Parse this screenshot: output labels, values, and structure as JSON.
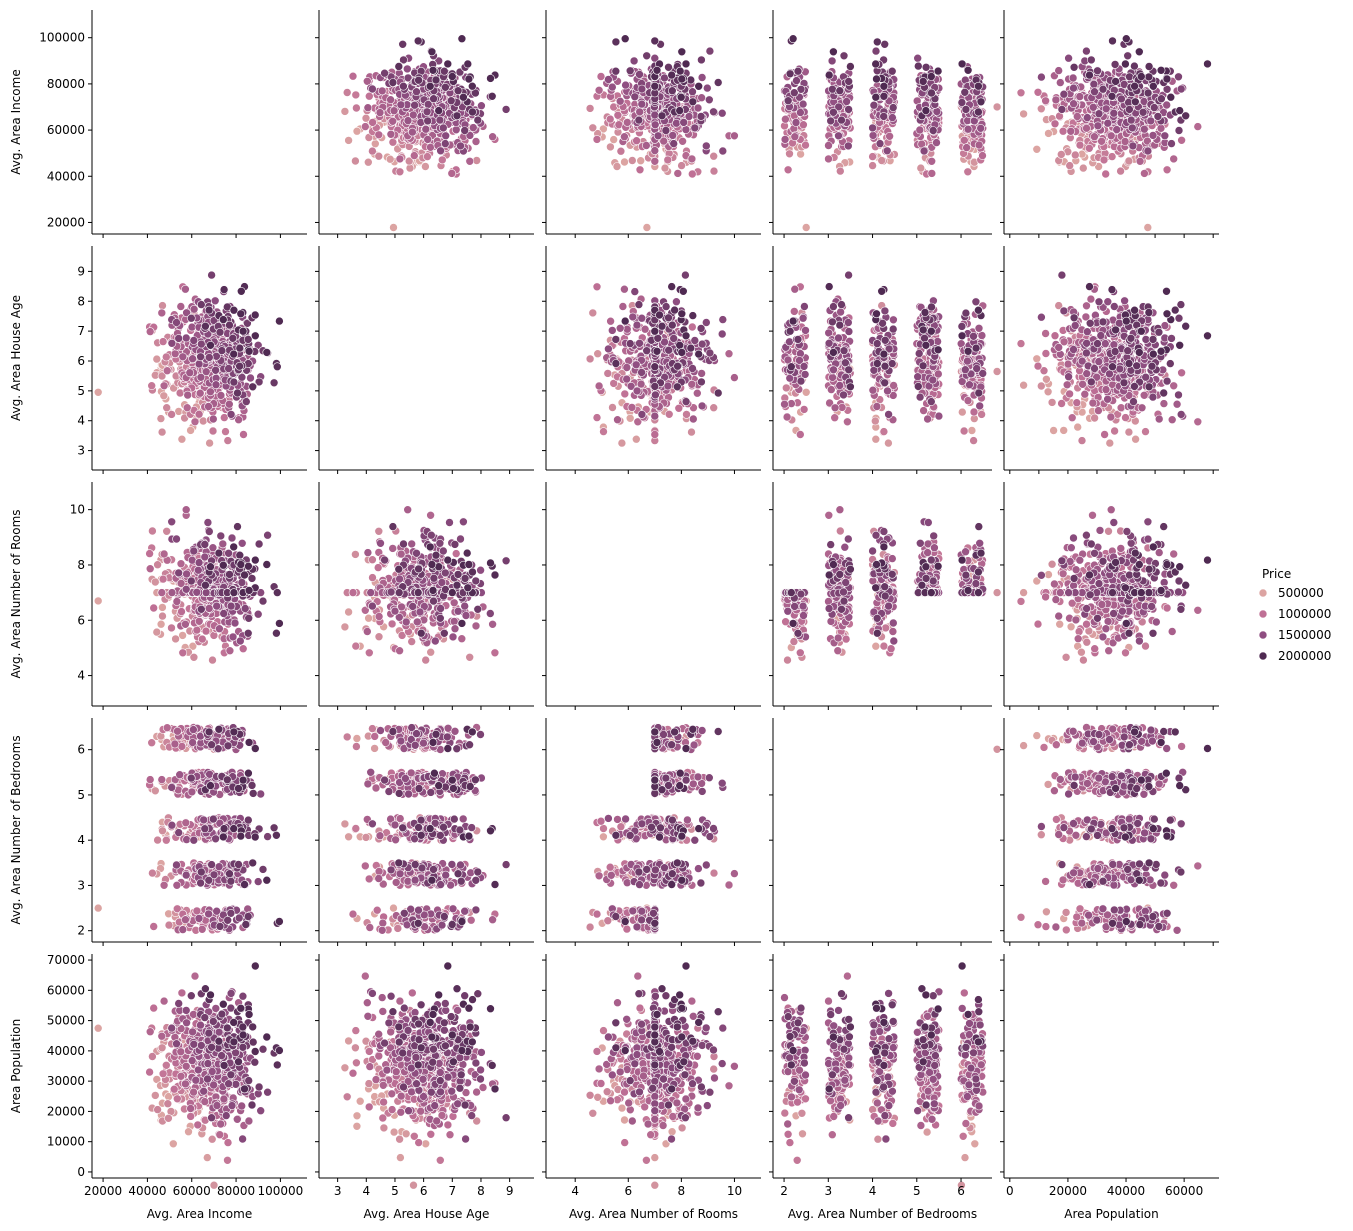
{
  "chart_data": {
    "type": "scatter",
    "kind": "pairplot",
    "hue": {
      "title": "Price",
      "entries": [
        {
          "label": "500000",
          "value": 500000,
          "color": "#dca4a2"
        },
        {
          "label": "1000000",
          "value": 1000000,
          "color": "#bf7095"
        },
        {
          "label": "1500000",
          "value": 1500000,
          "color": "#8f4e81"
        },
        {
          "label": "2000000",
          "value": 2000000,
          "color": "#4f2a52"
        }
      ],
      "range": [
        15000,
        2470000
      ]
    },
    "variables": [
      {
        "name": "Avg. Area Income",
        "range": [
          15000,
          112000
        ],
        "ticks": [
          20000,
          40000,
          60000,
          80000,
          100000
        ],
        "tick_labels": [
          "20000",
          "40000",
          "60000",
          "80000",
          "100000"
        ],
        "center": 68000,
        "spread": 10500
      },
      {
        "name": "Avg. Area House Age",
        "range": [
          2.35,
          9.85
        ],
        "ticks": [
          3,
          4,
          5,
          6,
          7,
          8,
          9
        ],
        "tick_labels": [
          "3",
          "4",
          "5",
          "6",
          "7",
          "8",
          "9"
        ],
        "center": 6.0,
        "spread": 1.0
      },
      {
        "name": "Avg. Area Number of Rooms",
        "range": [
          2.9,
          11.0
        ],
        "ticks": [
          4,
          6,
          8,
          10
        ],
        "tick_labels": [
          "4",
          "6",
          "8",
          "10"
        ],
        "center": 7.0,
        "spread": 1.0
      },
      {
        "name": "Avg. Area Number of Bedrooms",
        "range": [
          1.75,
          6.7
        ],
        "ticks": [
          2,
          3,
          4,
          5,
          6
        ],
        "tick_labels": [
          "2",
          "3",
          "4",
          "5",
          "6"
        ],
        "center": 4.0,
        "spread": 1.2
      },
      {
        "name": "Area Population",
        "range": [
          -2000,
          72000
        ],
        "ticks": [
          0,
          10000,
          20000,
          30000,
          40000,
          50000,
          60000,
          70000
        ],
        "tick_labels": [
          "0",
          "10000",
          "20000",
          "30000",
          "40000",
          "50000",
          "60000",
          "70000"
        ],
        "center": 36000,
        "spread": 10000
      }
    ],
    "bottom_ticks": {
      "Area Population": {
        "ticks": [
          0,
          20000,
          40000,
          60000
        ],
        "tick_labels": [
          "0",
          "20000",
          "40000",
          "60000"
        ]
      }
    },
    "left_ticks": {
      "Avg. Area Income": {
        "ticks": [
          20000,
          40000,
          60000,
          80000,
          100000
        ],
        "tick_labels": [
          "20000",
          "40000",
          "60000",
          "80000",
          "100000"
        ]
      },
      "Avg. Area House Age": {
        "ticks": [
          3,
          4,
          5,
          6,
          7,
          8,
          9
        ],
        "tick_labels": [
          "3",
          "4",
          "5",
          "6",
          "7",
          "8",
          "9"
        ]
      },
      "Avg. Area Number of Rooms": {
        "ticks": [
          4,
          6,
          8,
          10
        ],
        "tick_labels": [
          "4",
          "6",
          "8",
          "10"
        ]
      },
      "Avg. Area Number of Bedrooms": {
        "ticks": [
          2,
          3,
          4,
          5,
          6
        ],
        "tick_labels": [
          "2",
          "3",
          "4",
          "5",
          "6"
        ]
      },
      "Area Population": {
        "ticks": [
          0,
          10000,
          20000,
          30000,
          40000,
          50000,
          60000,
          70000
        ],
        "tick_labels": [
          "0",
          "10000",
          "20000",
          "30000",
          "40000",
          "50000",
          "60000",
          "70000"
        ]
      }
    },
    "diagonal": "empty",
    "bedroom_bands": [
      {
        "center": 2.25,
        "halfwidth": 0.25
      },
      {
        "center": 3.25,
        "halfwidth": 0.25
      },
      {
        "center": 4.25,
        "halfwidth": 0.25
      },
      {
        "center": 5.25,
        "halfwidth": 0.25
      },
      {
        "center": 6.25,
        "halfwidth": 0.25
      }
    ],
    "rooms_by_bedroom_band": [
      {
        "min": 4.0,
        "max": 7.0
      },
      {
        "min": 4.0,
        "max": 10.2
      },
      {
        "min": 4.0,
        "max": 9.7
      },
      {
        "min": 7.0,
        "max": 10.4
      },
      {
        "min": 7.0,
        "max": 10.4
      }
    ],
    "outliers": {
      "Avg. Area Income": 17800,
      "Avg. Area House Age": 4.95,
      "Avg. Area Number of Rooms": 6.7,
      "Avg. Area Number of Bedrooms": 2.5,
      "Area Population": 47500
    },
    "approx_points_per_panel": 5000,
    "rendered_points_per_panel": 650
  }
}
